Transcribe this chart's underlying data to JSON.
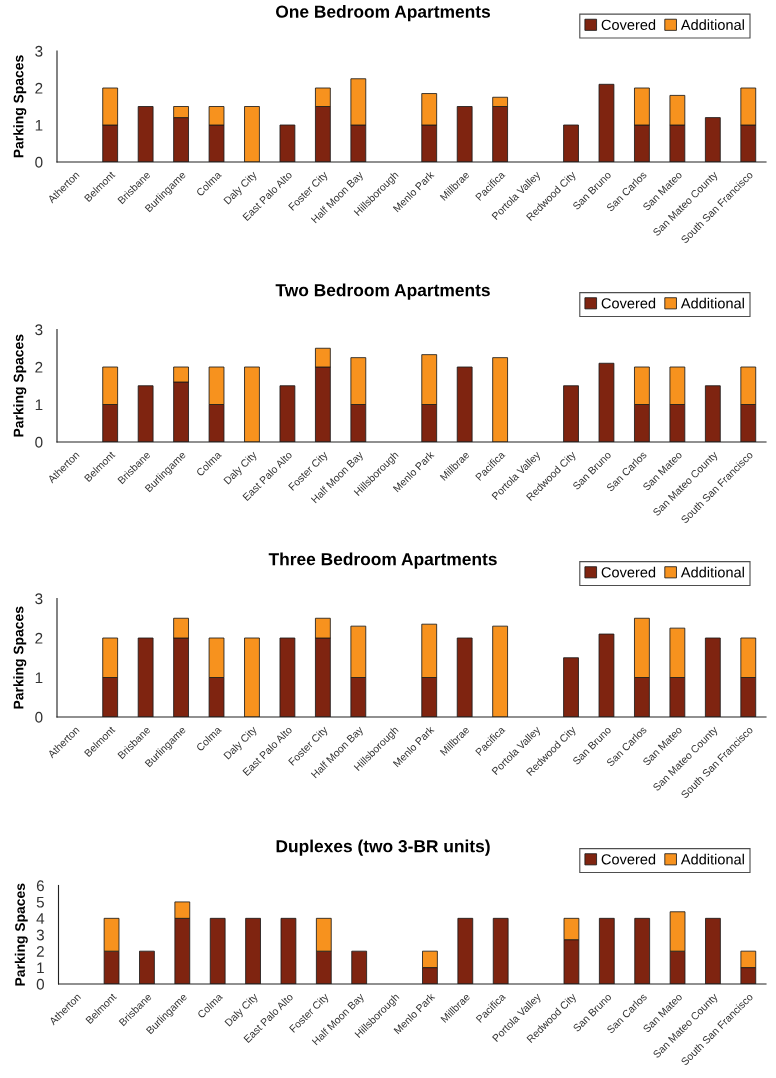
{
  "chart_data": [
    {
      "type": "bar",
      "stacked": true,
      "title": "One Bedroom Apartments",
      "ylabel": "Parking Spaces",
      "legend": "top right",
      "ylim": [
        0,
        3
      ],
      "yticks": [
        0,
        1,
        2,
        3
      ],
      "categories": [
        "Atherton",
        "Belmont",
        "Brisbane",
        "Burlingame",
        "Colma",
        "Daly City",
        "East Palo Alto",
        "Foster City",
        "Half Moon Bay",
        "Hillsborough",
        "Menlo Park",
        "Millbrae",
        "Pacifica",
        "Portola Valley",
        "Redwood City",
        "San Bruno",
        "San Carlos",
        "San Mateo",
        "San Mateo County",
        "South San Francisco"
      ],
      "series": [
        {
          "name": "Covered",
          "color": "#7f2410",
          "values": [
            null,
            1,
            1.5,
            1.2,
            1,
            null,
            1,
            1.5,
            1,
            null,
            1,
            1.5,
            1.5,
            null,
            1,
            2.1,
            1,
            1,
            1.2,
            1
          ]
        },
        {
          "name": "Additional",
          "color": "#f7921e",
          "values": [
            null,
            1,
            null,
            0.3,
            0.5,
            1.5,
            null,
            0.5,
            1.25,
            null,
            0.85,
            null,
            0.25,
            null,
            null,
            null,
            1,
            0.8,
            null,
            1
          ]
        }
      ]
    },
    {
      "type": "bar",
      "stacked": true,
      "title": "Two Bedroom Apartments",
      "ylabel": "Parking Spaces",
      "legend": "top right",
      "ylim": [
        0,
        3
      ],
      "yticks": [
        0,
        1,
        2,
        3
      ],
      "categories": [
        "Atherton",
        "Belmont",
        "Brisbane",
        "Burlingame",
        "Colma",
        "Daly City",
        "East Palo Alto",
        "Foster City",
        "Half Moon Bay",
        "Hillsborough",
        "Menlo Park",
        "Millbrae",
        "Pacifica",
        "Portola Valley",
        "Redwood City",
        "San Bruno",
        "San Carlos",
        "San Mateo",
        "San Mateo County",
        "South San Francisco"
      ],
      "series": [
        {
          "name": "Covered",
          "color": "#7f2410",
          "values": [
            null,
            1,
            1.5,
            1.6,
            1,
            null,
            1.5,
            2,
            1,
            null,
            1,
            2,
            null,
            null,
            1.5,
            2.1,
            1,
            1,
            1.5,
            1
          ]
        },
        {
          "name": "Additional",
          "color": "#f7921e",
          "values": [
            null,
            1,
            null,
            0.4,
            1,
            2,
            null,
            0.5,
            1.25,
            null,
            1.33,
            null,
            2.25,
            null,
            null,
            null,
            1,
            1,
            null,
            1
          ]
        }
      ]
    },
    {
      "type": "bar",
      "stacked": true,
      "title": "Three Bedroom Apartments",
      "ylabel": "Parking Spaces",
      "legend": "top right",
      "ylim": [
        0,
        3
      ],
      "yticks": [
        0,
        1,
        2,
        3
      ],
      "categories": [
        "Atherton",
        "Belmont",
        "Brisbane",
        "Burlingame",
        "Colma",
        "Daly City",
        "East Palo Alto",
        "Foster City",
        "Half Moon Bay",
        "Hillsborough",
        "Menlo Park",
        "Millbrae",
        "Pacifica",
        "Portola Valley",
        "Redwood City",
        "San Bruno",
        "San Carlos",
        "San Mateo",
        "San Mateo County",
        "South San Francisco"
      ],
      "series": [
        {
          "name": "Covered",
          "color": "#7f2410",
          "values": [
            null,
            1,
            2,
            2,
            1,
            null,
            2,
            2,
            1,
            null,
            1,
            2,
            null,
            null,
            1.5,
            2.1,
            1,
            1,
            2,
            1
          ]
        },
        {
          "name": "Additional",
          "color": "#f7921e",
          "values": [
            null,
            1,
            null,
            0.5,
            1,
            2,
            null,
            0.5,
            1.3,
            null,
            1.35,
            null,
            2.3,
            null,
            null,
            null,
            1.5,
            1.25,
            null,
            1
          ]
        }
      ]
    },
    {
      "type": "bar",
      "stacked": true,
      "title": "Duplexes (two 3-BR units)",
      "ylabel": "Parking Spaces",
      "legend": "top right",
      "ylim": [
        0,
        6
      ],
      "yticks": [
        0,
        1,
        2,
        3,
        4,
        5,
        6
      ],
      "categories": [
        "Atherton",
        "Belmont",
        "Brisbane",
        "Burlingame",
        "Colma",
        "Daly City",
        "East Palo Alto",
        "Foster City",
        "Half Moon Bay",
        "Hillsborough",
        "Menlo Park",
        "Millbrae",
        "Pacifica",
        "Portola Valley",
        "Redwood City",
        "San Bruno",
        "San Carlos",
        "San Mateo",
        "San Mateo County",
        "South San Francisco"
      ],
      "series": [
        {
          "name": "Covered",
          "color": "#7f2410",
          "values": [
            null,
            2,
            2,
            4,
            4,
            4,
            4,
            2,
            2,
            null,
            1,
            4,
            4,
            null,
            2.7,
            4,
            4,
            2,
            4,
            1
          ]
        },
        {
          "name": "Additional",
          "color": "#f7921e",
          "values": [
            null,
            2,
            null,
            1,
            null,
            null,
            null,
            2,
            null,
            null,
            1,
            null,
            null,
            null,
            1.3,
            null,
            null,
            2.4,
            null,
            1
          ]
        }
      ]
    }
  ]
}
